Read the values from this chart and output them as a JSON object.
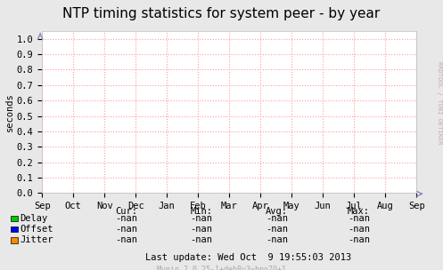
{
  "title": "NTP timing statistics for system peer - by year",
  "ylabel": "seconds",
  "bg_color": "#e8e8e8",
  "plot_bg_color": "#ffffff",
  "grid_color": "#ff9999",
  "grid_linestyle": ":",
  "yticks": [
    0.0,
    0.1,
    0.2,
    0.3,
    0.4,
    0.5,
    0.6,
    0.7,
    0.8,
    0.9,
    1.0
  ],
  "ylim": [
    0.0,
    1.05
  ],
  "xtick_labels": [
    "Sep",
    "Oct",
    "Nov",
    "Dec",
    "Jan",
    "Feb",
    "Mar",
    "Apr",
    "May",
    "Jun",
    "Jul",
    "Aug",
    "Sep"
  ],
  "legend_items": [
    {
      "label": "Delay",
      "color": "#00cc00"
    },
    {
      "label": "Offset",
      "color": "#0000ff"
    },
    {
      "label": "Jitter",
      "color": "#ff8800"
    }
  ],
  "table_headers": [
    "Cur:",
    "Min:",
    "Avg:",
    "Max:"
  ],
  "table_values": [
    [
      "-nan",
      "-nan",
      "-nan",
      "-nan"
    ],
    [
      "-nan",
      "-nan",
      "-nan",
      "-nan"
    ],
    [
      "-nan",
      "-nan",
      "-nan",
      "-nan"
    ]
  ],
  "last_update": "Last update: Wed Oct  9 19:55:03 2013",
  "munin_version": "Munin 2.0.25-1+deb8u3~bpo70+1",
  "side_text": "RRDTOOL / TOBI OETIKER",
  "title_fontsize": 11,
  "axis_fontsize": 7.5,
  "label_fontsize": 7.5,
  "table_fontsize": 7.5,
  "side_fontsize": 5,
  "munin_fontsize": 6
}
